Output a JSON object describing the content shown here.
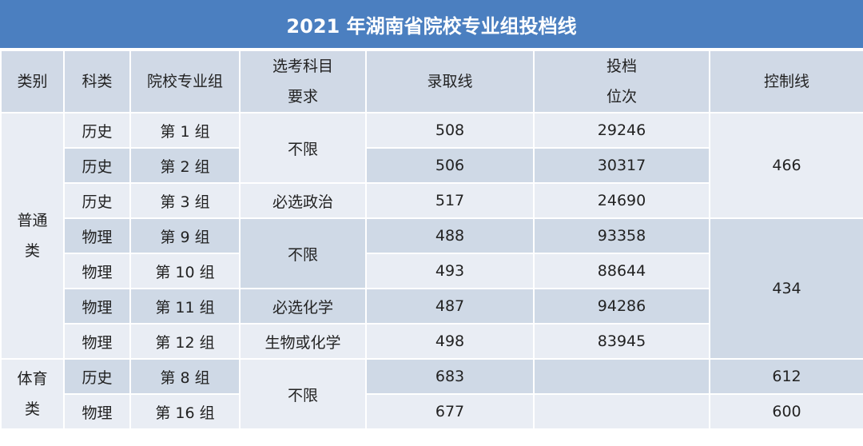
{
  "title": "2021 年湖南省院校专业组投档线",
  "headers": {
    "category": "类别",
    "subject": "科类",
    "group": "院校专业组",
    "req_line1": "选考科目",
    "req_line2": "要求",
    "score": "录取线",
    "rank_line1": "投档",
    "rank_line2": "位次",
    "control": "控制线"
  },
  "sections": [
    {
      "category": "普通类",
      "rows": [
        {
          "subject": "历史",
          "group": "第 1 组",
          "score": "508",
          "rank": "29246"
        },
        {
          "subject": "历史",
          "group": "第 2 组",
          "score": "506",
          "rank": "30317"
        },
        {
          "subject": "历史",
          "group": "第 3 组",
          "score": "517",
          "rank": "24690"
        },
        {
          "subject": "物理",
          "group": "第 9 组",
          "score": "488",
          "rank": "93358"
        },
        {
          "subject": "物理",
          "group": "第 10 组",
          "score": "493",
          "rank": "88644"
        },
        {
          "subject": "物理",
          "group": "第 11 组",
          "score": "487",
          "rank": "94286"
        },
        {
          "subject": "物理",
          "group": "第 12 组",
          "score": "498",
          "rank": "83945"
        }
      ],
      "requirements": [
        "不限",
        "必选政治",
        "不限",
        "必选化学",
        "生物或化学"
      ],
      "control": [
        "466",
        "434"
      ]
    },
    {
      "category": "体育类",
      "rows": [
        {
          "subject": "历史",
          "group": "第 8 组",
          "score": "683",
          "rank": ""
        },
        {
          "subject": "物理",
          "group": "第 16 组",
          "score": "677",
          "rank": ""
        }
      ],
      "requirements": [
        "不限"
      ],
      "control": [
        "612",
        "600"
      ]
    }
  ]
}
